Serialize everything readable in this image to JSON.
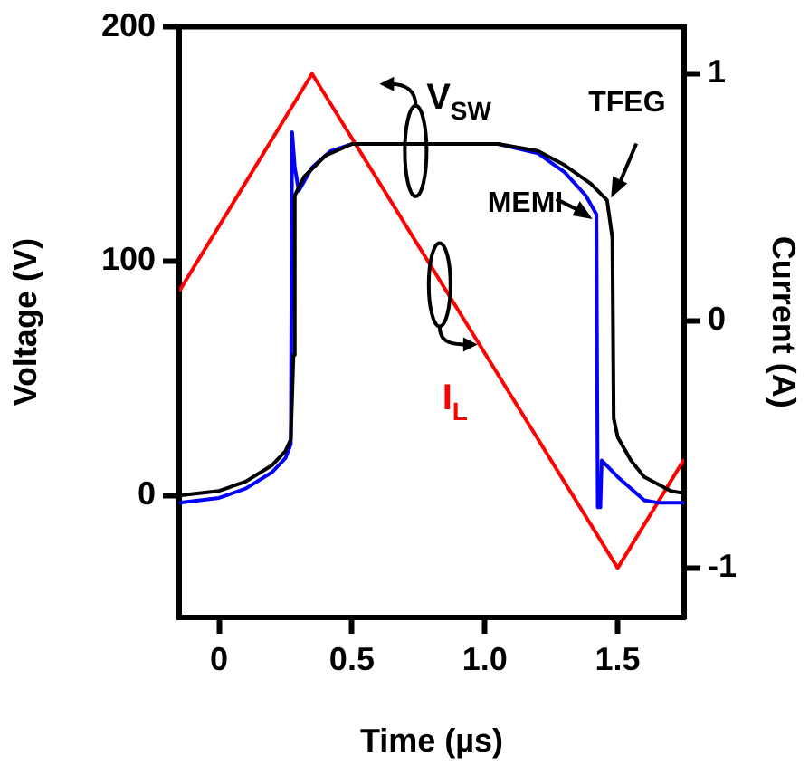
{
  "chart_data": {
    "type": "line",
    "xlabel": "Time (µs)",
    "ylabel": "Voltage (V)",
    "y2label": "Current (A)",
    "xlim": [
      -0.15,
      1.75
    ],
    "xticks": [
      0,
      0.5,
      {
        "value": 1,
        "label": "1.0"
      },
      1.5
    ],
    "ylim": [
      -52,
      200
    ],
    "yticks": [
      0,
      100,
      200
    ],
    "y2lim": [
      -1.2,
      1.19
    ],
    "y2ticks": [
      -1,
      0,
      1
    ],
    "grid": false,
    "legend": false,
    "marker": "none",
    "line_style": "solid",
    "annotations": [
      "V$_{SW}$",
      "TFEG",
      "MEMI"
    ],
    "series": [
      {
        "color": "#000000",
        "x": [
          -0.15,
          0,
          0.1,
          0.2,
          0.25,
          0.27,
          0.28,
          0.285,
          0.32,
          0.4,
          0.5,
          1.05,
          1.2,
          1.3,
          1.4,
          1.46,
          1.48,
          1.485,
          1.5,
          1.55,
          1.6,
          1.7,
          1.75
        ],
        "values": [
          0,
          2,
          6,
          13,
          19,
          24,
          60,
          128,
          136,
          145,
          150,
          150,
          147,
          141,
          133,
          126,
          110,
          33,
          25,
          15,
          8,
          2,
          1
        ]
      },
      {
        "color": "#0000ff",
        "x": [
          -0.15,
          0,
          0.1,
          0.2,
          0.25,
          0.27,
          0.275,
          0.285,
          0.3,
          0.35,
          0.42,
          0.5,
          1.05,
          1.2,
          1.3,
          1.38,
          1.42,
          1.425,
          1.435,
          1.44,
          1.5,
          1.6,
          1.65,
          1.75
        ],
        "values": [
          -3,
          -1,
          3,
          10,
          16,
          22,
          155,
          140,
          130,
          140,
          147,
          150,
          150,
          146,
          138,
          128,
          120,
          -5,
          -5,
          15,
          8,
          -2,
          -3,
          -3
        ]
      },
      {
        "name": "I$_{L}$",
        "color": "#ff0000",
        "axis": "y2",
        "x": [
          -0.15,
          0.35,
          1.5,
          1.75
        ],
        "values": [
          0.12,
          1.0,
          -1.0,
          -0.56
        ]
      }
    ]
  }
}
